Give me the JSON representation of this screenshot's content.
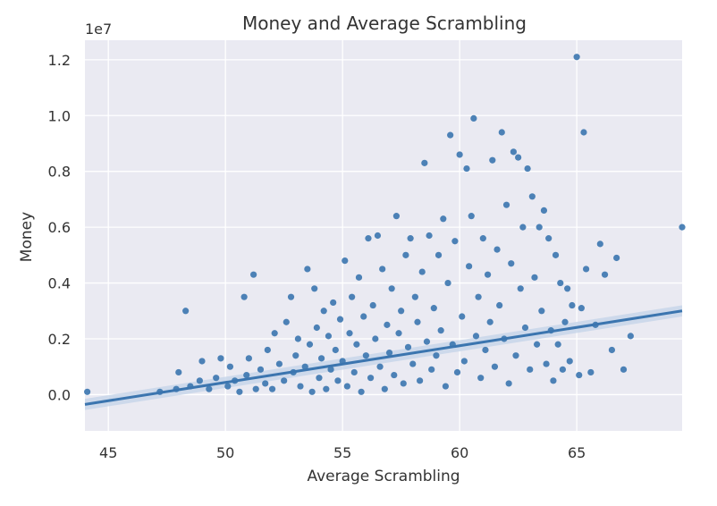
{
  "chart_data": {
    "type": "scatter",
    "title": "Money and Average Scrambling",
    "xlabel": "Average Scrambling",
    "ylabel": "Money",
    "y_offset_label": "1e7",
    "xlim": [
      44,
      69.5
    ],
    "ylim": [
      -0.13,
      1.27
    ],
    "x_ticks": [
      45,
      50,
      55,
      60,
      65
    ],
    "x_tick_labels": [
      "45",
      "50",
      "55",
      "60",
      "65"
    ],
    "y_ticks": [
      0.0,
      0.2,
      0.4,
      0.6,
      0.8,
      1.0,
      1.2
    ],
    "y_tick_labels": [
      "0.0",
      "0.2",
      "0.4",
      "0.6",
      "0.8",
      "1.0",
      "1.2"
    ],
    "y_unit_scale": 10000000,
    "grid": true,
    "colors": {
      "points": "#3b75af",
      "background": "#eaeaf2",
      "grid": "#ffffff",
      "ci_band": "#c5d5e8"
    },
    "points": [
      [
        44.1,
        0.01
      ],
      [
        47.2,
        0.01
      ],
      [
        47.9,
        0.02
      ],
      [
        48.0,
        0.08
      ],
      [
        48.3,
        0.3
      ],
      [
        48.5,
        0.03
      ],
      [
        48.9,
        0.05
      ],
      [
        49.0,
        0.12
      ],
      [
        49.3,
        0.02
      ],
      [
        49.6,
        0.06
      ],
      [
        49.8,
        0.13
      ],
      [
        50.1,
        0.03
      ],
      [
        50.2,
        0.1
      ],
      [
        50.4,
        0.05
      ],
      [
        50.6,
        0.01
      ],
      [
        50.8,
        0.35
      ],
      [
        50.9,
        0.07
      ],
      [
        51.0,
        0.13
      ],
      [
        51.2,
        0.43
      ],
      [
        51.3,
        0.02
      ],
      [
        51.5,
        0.09
      ],
      [
        51.7,
        0.04
      ],
      [
        51.8,
        0.16
      ],
      [
        52.0,
        0.02
      ],
      [
        52.1,
        0.22
      ],
      [
        52.3,
        0.11
      ],
      [
        52.5,
        0.05
      ],
      [
        52.6,
        0.26
      ],
      [
        52.8,
        0.35
      ],
      [
        52.9,
        0.08
      ],
      [
        53.0,
        0.14
      ],
      [
        53.1,
        0.2
      ],
      [
        53.2,
        0.03
      ],
      [
        53.4,
        0.1
      ],
      [
        53.5,
        0.45
      ],
      [
        53.6,
        0.18
      ],
      [
        53.7,
        0.01
      ],
      [
        53.8,
        0.38
      ],
      [
        53.9,
        0.24
      ],
      [
        54.0,
        0.06
      ],
      [
        54.1,
        0.13
      ],
      [
        54.2,
        0.3
      ],
      [
        54.3,
        0.02
      ],
      [
        54.4,
        0.21
      ],
      [
        54.5,
        0.09
      ],
      [
        54.6,
        0.33
      ],
      [
        54.7,
        0.16
      ],
      [
        54.8,
        0.05
      ],
      [
        54.9,
        0.27
      ],
      [
        55.0,
        0.12
      ],
      [
        55.1,
        0.48
      ],
      [
        55.2,
        0.03
      ],
      [
        55.3,
        0.22
      ],
      [
        55.4,
        0.35
      ],
      [
        55.5,
        0.08
      ],
      [
        55.6,
        0.18
      ],
      [
        55.7,
        0.42
      ],
      [
        55.8,
        0.01
      ],
      [
        55.9,
        0.28
      ],
      [
        56.0,
        0.14
      ],
      [
        56.1,
        0.56
      ],
      [
        56.2,
        0.06
      ],
      [
        56.3,
        0.32
      ],
      [
        56.4,
        0.2
      ],
      [
        56.5,
        0.57
      ],
      [
        56.6,
        0.1
      ],
      [
        56.7,
        0.45
      ],
      [
        56.8,
        0.02
      ],
      [
        56.9,
        0.25
      ],
      [
        57.0,
        0.15
      ],
      [
        57.1,
        0.38
      ],
      [
        57.2,
        0.07
      ],
      [
        57.3,
        0.64
      ],
      [
        57.4,
        0.22
      ],
      [
        57.5,
        0.3
      ],
      [
        57.6,
        0.04
      ],
      [
        57.7,
        0.5
      ],
      [
        57.8,
        0.17
      ],
      [
        57.9,
        0.56
      ],
      [
        58.0,
        0.11
      ],
      [
        58.1,
        0.35
      ],
      [
        58.2,
        0.26
      ],
      [
        58.3,
        0.05
      ],
      [
        58.4,
        0.44
      ],
      [
        58.5,
        0.83
      ],
      [
        58.6,
        0.19
      ],
      [
        58.7,
        0.57
      ],
      [
        58.8,
        0.09
      ],
      [
        58.9,
        0.31
      ],
      [
        59.0,
        0.14
      ],
      [
        59.1,
        0.5
      ],
      [
        59.2,
        0.23
      ],
      [
        59.3,
        0.63
      ],
      [
        59.4,
        0.03
      ],
      [
        59.5,
        0.4
      ],
      [
        59.6,
        0.93
      ],
      [
        59.7,
        0.18
      ],
      [
        59.8,
        0.55
      ],
      [
        59.9,
        0.08
      ],
      [
        60.0,
        0.86
      ],
      [
        60.1,
        0.28
      ],
      [
        60.2,
        0.12
      ],
      [
        60.3,
        0.81
      ],
      [
        60.4,
        0.46
      ],
      [
        60.5,
        0.64
      ],
      [
        60.6,
        0.99
      ],
      [
        60.7,
        0.21
      ],
      [
        60.8,
        0.35
      ],
      [
        60.9,
        0.06
      ],
      [
        61.0,
        0.56
      ],
      [
        61.1,
        0.16
      ],
      [
        61.2,
        0.43
      ],
      [
        61.3,
        0.26
      ],
      [
        61.4,
        0.84
      ],
      [
        61.5,
        0.1
      ],
      [
        61.6,
        0.52
      ],
      [
        61.7,
        0.32
      ],
      [
        61.8,
        0.94
      ],
      [
        61.9,
        0.2
      ],
      [
        62.0,
        0.68
      ],
      [
        62.1,
        0.04
      ],
      [
        62.2,
        0.47
      ],
      [
        62.3,
        0.87
      ],
      [
        62.4,
        0.14
      ],
      [
        62.5,
        0.85
      ],
      [
        62.6,
        0.38
      ],
      [
        62.7,
        0.6
      ],
      [
        62.8,
        0.24
      ],
      [
        62.9,
        0.81
      ],
      [
        63.0,
        0.09
      ],
      [
        63.1,
        0.71
      ],
      [
        63.2,
        0.42
      ],
      [
        63.3,
        0.18
      ],
      [
        63.4,
        0.6
      ],
      [
        63.5,
        0.3
      ],
      [
        63.6,
        0.66
      ],
      [
        63.7,
        0.11
      ],
      [
        63.8,
        0.56
      ],
      [
        63.9,
        0.23
      ],
      [
        64.0,
        0.05
      ],
      [
        64.1,
        0.5
      ],
      [
        64.2,
        0.18
      ],
      [
        64.3,
        0.4
      ],
      [
        64.4,
        0.09
      ],
      [
        64.5,
        0.26
      ],
      [
        64.6,
        0.38
      ],
      [
        64.7,
        0.12
      ],
      [
        64.8,
        0.32
      ],
      [
        65.0,
        1.21
      ],
      [
        65.1,
        0.07
      ],
      [
        65.2,
        0.31
      ],
      [
        65.3,
        0.94
      ],
      [
        65.4,
        0.45
      ],
      [
        65.6,
        0.08
      ],
      [
        65.8,
        0.25
      ],
      [
        66.0,
        0.54
      ],
      [
        66.2,
        0.43
      ],
      [
        66.5,
        0.16
      ],
      [
        66.7,
        0.49
      ],
      [
        67.0,
        0.09
      ],
      [
        67.3,
        0.21
      ],
      [
        69.5,
        0.6
      ]
    ],
    "regression_line": {
      "x": [
        44,
        69.5
      ],
      "y": [
        -0.035,
        0.3
      ]
    }
  }
}
